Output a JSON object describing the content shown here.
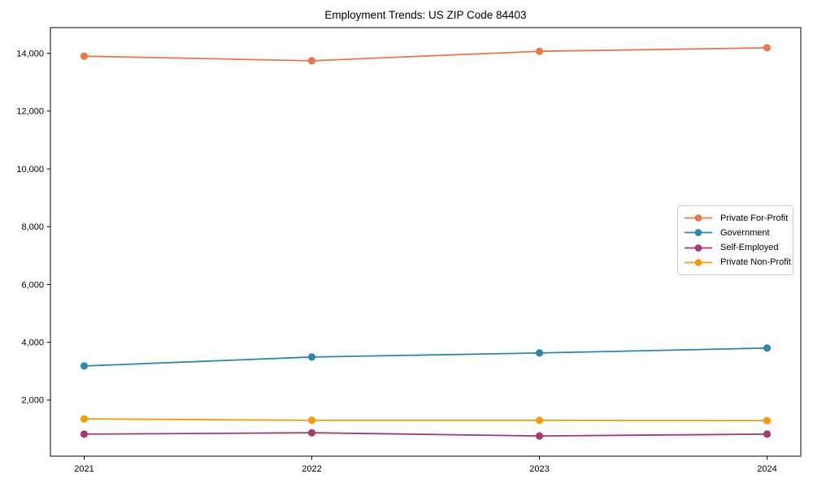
{
  "chart_data": {
    "type": "line",
    "title": "Employment Trends: US ZIP Code 84403",
    "xlabel": "",
    "ylabel": "",
    "categories": [
      "2021",
      "2022",
      "2023",
      "2024"
    ],
    "series": [
      {
        "name": "Private For-Profit",
        "color": "#E8784B",
        "values": [
          13900,
          13740,
          14070,
          14190
        ]
      },
      {
        "name": "Government",
        "color": "#2E86AB",
        "values": [
          3180,
          3490,
          3630,
          3800
        ]
      },
      {
        "name": "Self-Employed",
        "color": "#A23B72",
        "values": [
          820,
          870,
          760,
          820
        ]
      },
      {
        "name": "Private Non-Profit",
        "color": "#F39C12",
        "values": [
          1350,
          1300,
          1300,
          1290
        ]
      }
    ],
    "ylim": [
      60,
      14890
    ],
    "yticks": [
      2000,
      4000,
      6000,
      8000,
      10000,
      12000,
      14000
    ],
    "ytick_labels": [
      "2,000",
      "4,000",
      "6,000",
      "8,000",
      "10,000",
      "12,000",
      "14,000"
    ],
    "grid": false,
    "legend_position": "center right",
    "marker": "circle",
    "axis_color": "#000000",
    "background": "#ffffff"
  }
}
